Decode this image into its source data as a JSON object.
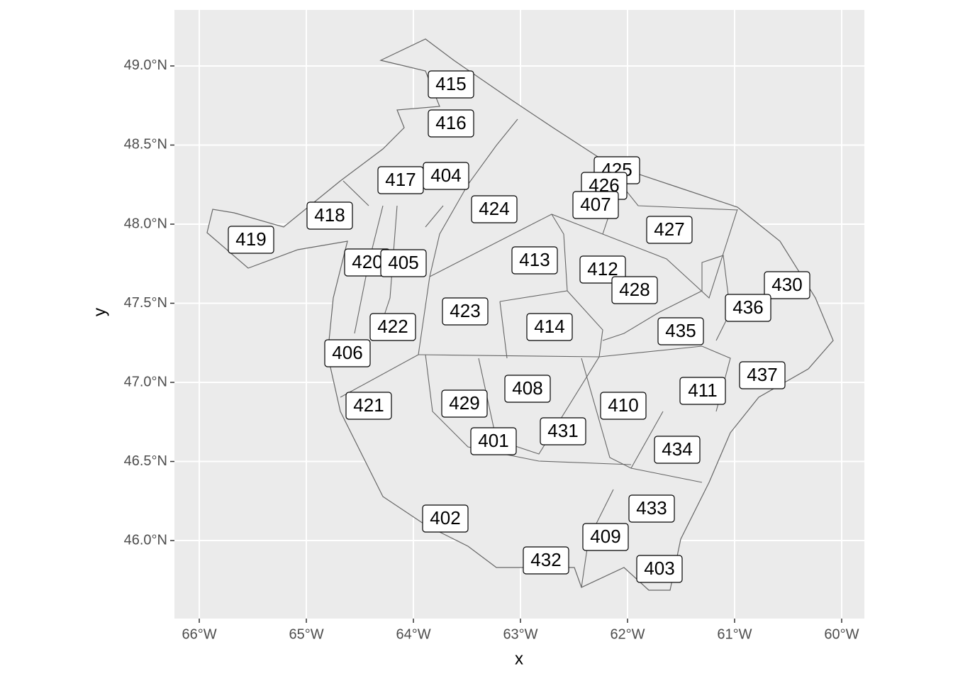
{
  "chart_data": {
    "type": "map",
    "x_label": "x",
    "y_label": "y",
    "xlim": [
      -66.232,
      -59.788
    ],
    "ylim": [
      45.507,
      49.354
    ],
    "xticks": [
      {
        "value": -66,
        "label": "66°W"
      },
      {
        "value": -65,
        "label": "65°W"
      },
      {
        "value": -64,
        "label": "64°W"
      },
      {
        "value": -63,
        "label": "63°W"
      },
      {
        "value": -62,
        "label": "62°W"
      },
      {
        "value": -61,
        "label": "61°W"
      },
      {
        "value": -60,
        "label": "60°W"
      }
    ],
    "yticks": [
      {
        "value": 46,
        "label": "46.0°N"
      },
      {
        "value": 46.5,
        "label": "46.5°N"
      },
      {
        "value": 47,
        "label": "47.0°N"
      },
      {
        "value": 47.5,
        "label": "47.5°N"
      },
      {
        "value": 48,
        "label": "48.0°N"
      },
      {
        "value": 48.5,
        "label": "48.5°N"
      },
      {
        "value": 49,
        "label": "49.0°N"
      }
    ],
    "grid": true,
    "labels": [
      "415",
      "416",
      "425",
      "426",
      "407",
      "417",
      "404",
      "424",
      "418",
      "419",
      "427",
      "420",
      "405",
      "413",
      "412",
      "428",
      "430",
      "436",
      "423",
      "414",
      "422",
      "435",
      "406",
      "437",
      "408",
      "411",
      "429",
      "410",
      "421",
      "431",
      "401",
      "434",
      "433",
      "402",
      "409",
      "432",
      "403"
    ]
  }
}
